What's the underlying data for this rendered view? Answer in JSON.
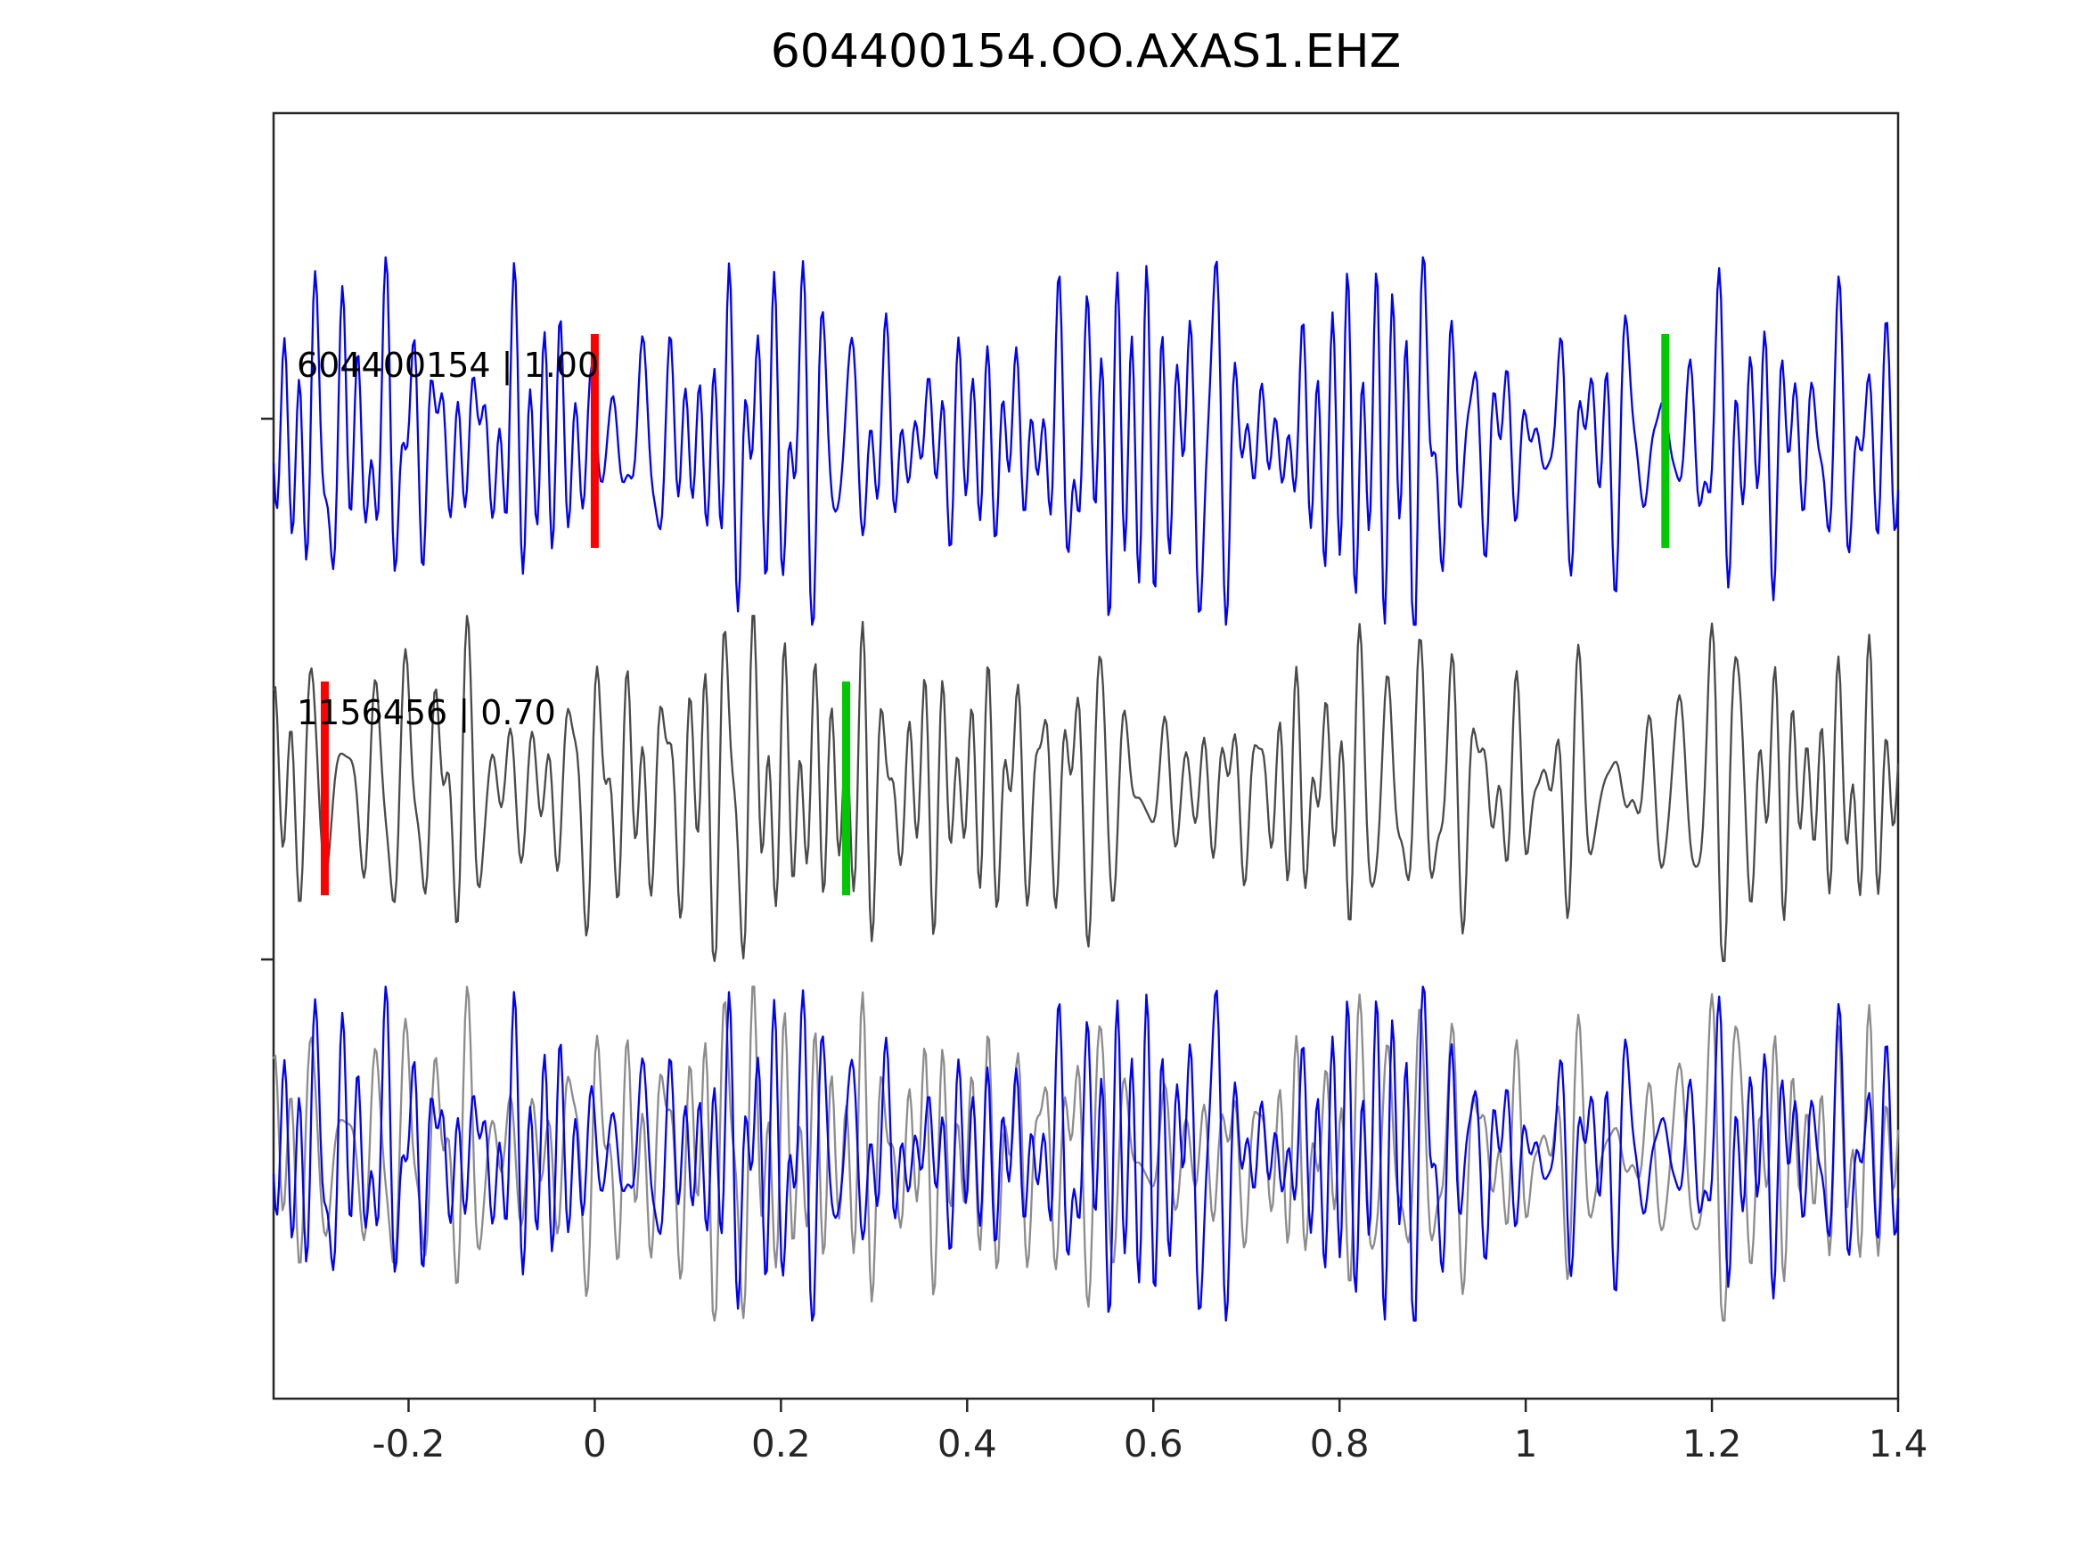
{
  "title": "604400154.OO.AXAS1.EHZ",
  "colors": {
    "template_blue": "#0000ff",
    "detection_gray": "#4a4a4a",
    "overlay_gray": "#8c8c8c",
    "pick_red": "#ff0000",
    "pick_green": "#00c800",
    "axis": "#262626",
    "background": "#ffffff"
  },
  "chart_data": {
    "type": "line",
    "title": "604400154.OO.AXAS1.EHZ",
    "xlabel": "",
    "ylabel": "",
    "xlim": [
      -0.345,
      1.4
    ],
    "grid": false,
    "legend": "none",
    "x_tick_values": [
      -0.2,
      0,
      0.2,
      0.4,
      0.6,
      0.8,
      1,
      1.2,
      1.4
    ],
    "x_tick_labels": [
      "-0.2",
      "0",
      "0.2",
      "0.4",
      "0.6",
      "0.8",
      "1",
      "1.2",
      "1.4"
    ],
    "waveform_note": "High-frequency seismic waveform traces (band-limited oscillatory noise); individual sample values are not resolvable at this scale and are synthesized from the seeds below.",
    "series": [
      {
        "id": "template",
        "label": "604400154 | 1.00",
        "trace_id": "604400154",
        "correlation": 1.0,
        "color": "#0000ff",
        "row": 0,
        "picks": [
          {
            "x": 0.0,
            "color": "#ff0000",
            "name": "red-pick"
          },
          {
            "x": 1.15,
            "color": "#00c800",
            "name": "green-pick"
          }
        ],
        "waveform": {
          "seed": 814229,
          "components": 20,
          "freq_range": [
            18,
            65
          ],
          "points": 900
        }
      },
      {
        "id": "detection",
        "label": "1156456 | 0.70",
        "trace_id": "1156456",
        "correlation": 0.7,
        "color": "#4a4a4a",
        "row": 1,
        "picks": [
          {
            "x": -0.29,
            "color": "#ff0000",
            "name": "red-pick"
          },
          {
            "x": 0.27,
            "color": "#00c800",
            "name": "green-pick"
          }
        ],
        "waveform": {
          "seed": 391785,
          "components": 20,
          "freq_range": [
            18,
            65
          ],
          "points": 900
        }
      },
      {
        "id": "overlay",
        "label": "",
        "row": 2,
        "picks": [],
        "lines": [
          {
            "id": "overlay-detection",
            "color": "#8c8c8c",
            "waveform": {
              "seed": 391785,
              "components": 20,
              "freq_range": [
                18,
                65
              ],
              "points": 900
            }
          },
          {
            "id": "overlay-template",
            "color": "#0000ff",
            "waveform": {
              "seed": 814229,
              "components": 20,
              "freq_range": [
                18,
                65
              ],
              "points": 900
            }
          }
        ]
      }
    ]
  }
}
